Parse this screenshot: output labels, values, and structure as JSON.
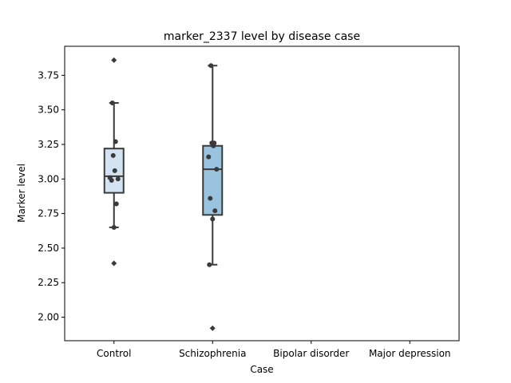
{
  "chart_data": {
    "type": "box",
    "title": "marker_2337 level by disease case",
    "xlabel": "Case",
    "ylabel": "Marker level",
    "ylim": [
      1.83,
      3.96
    ],
    "yticks": [
      "2.00",
      "2.25",
      "2.50",
      "2.75",
      "3.00",
      "3.25",
      "3.50",
      "3.75"
    ],
    "categories": [
      "Control",
      "Schizophrenia",
      "Bipolar disorder",
      "Major depression"
    ],
    "box_colors": [
      "#d4e3f1",
      "#99c3df"
    ],
    "groups": [
      {
        "category": "Control",
        "q1": 2.9,
        "median": 3.02,
        "q3": 3.22,
        "whisker_low": 2.65,
        "whisker_high": 3.55,
        "outliers": [
          2.39,
          3.86
        ],
        "points": [
          3.55,
          3.27,
          3.17,
          3.06,
          3.01,
          3.0,
          2.99,
          2.82,
          2.65
        ]
      },
      {
        "category": "Schizophrenia",
        "q1": 2.74,
        "median": 3.07,
        "q3": 3.24,
        "whisker_low": 2.38,
        "whisker_high": 3.82,
        "outliers": [
          1.92
        ],
        "points": [
          3.82,
          3.26,
          3.26,
          3.24,
          3.16,
          3.07,
          2.86,
          2.77,
          2.71,
          2.38
        ]
      },
      {
        "category": "Bipolar disorder"
      },
      {
        "category": "Major depression"
      }
    ],
    "grid": false,
    "legend": "none"
  }
}
